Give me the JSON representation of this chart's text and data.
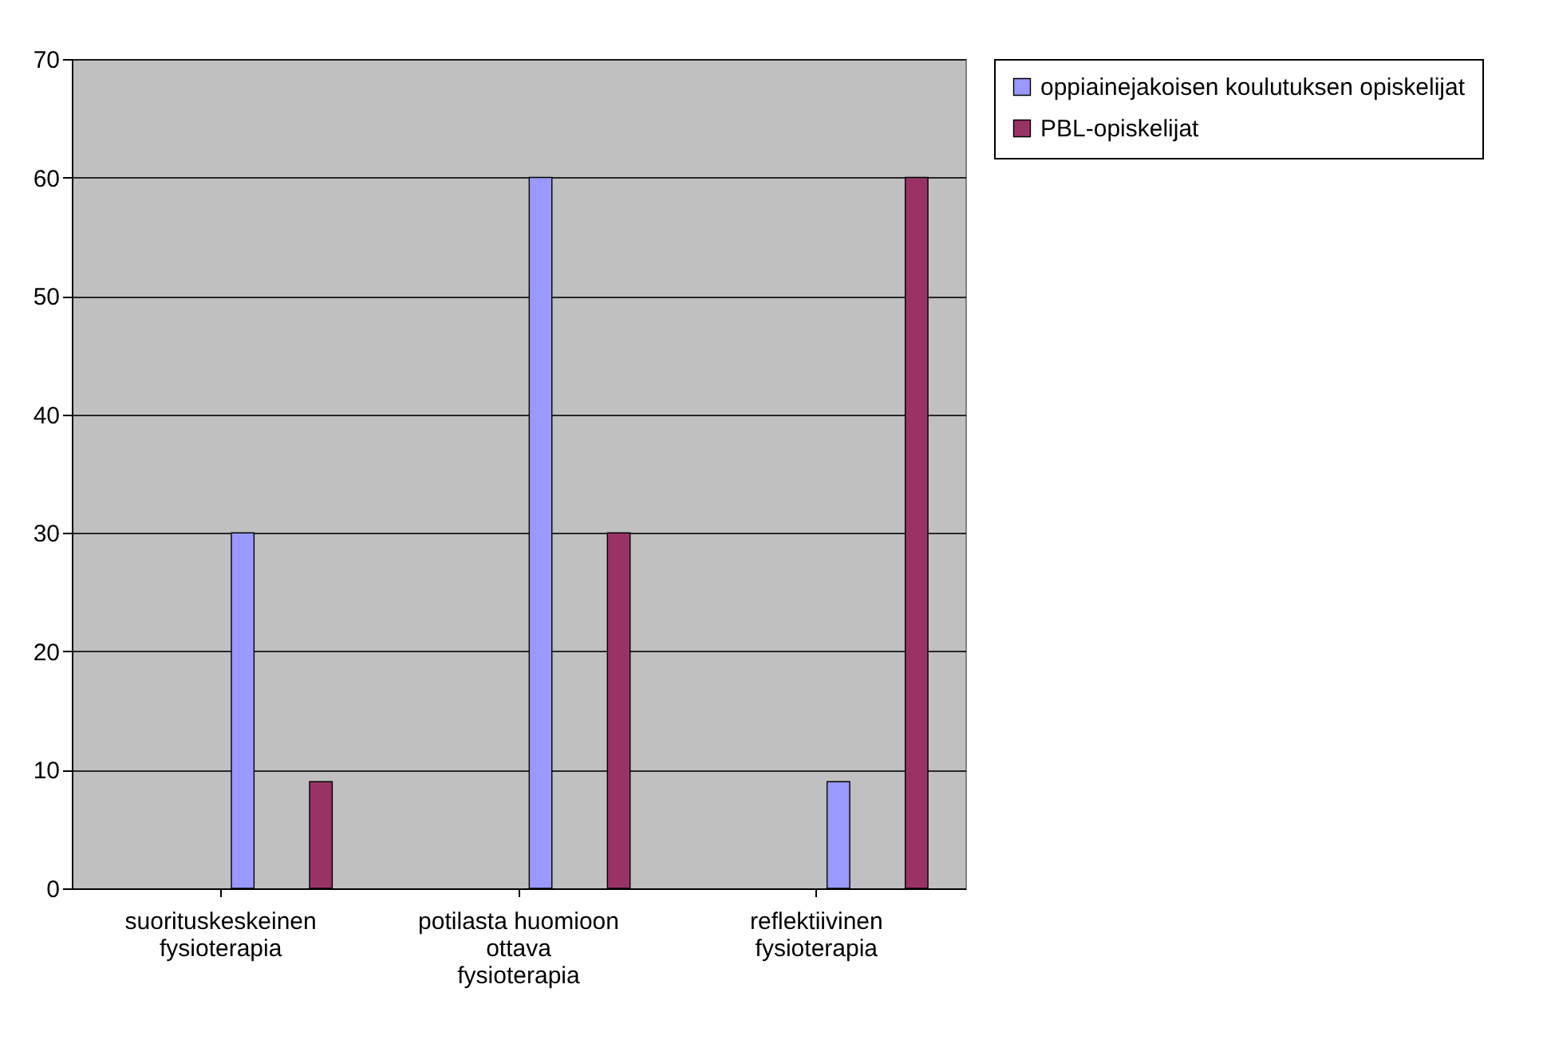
{
  "chart_data": {
    "type": "bar",
    "categories": [
      "suorituskeskeinen fysioterapia",
      "potilasta huomioon ottava fysioterapia",
      "reflektiivinen fysioterapia"
    ],
    "series": [
      {
        "name": "oppiainejakoisen koulutuksen opiskelijat",
        "color": "#9999ff",
        "values": [
          30,
          60,
          9
        ]
      },
      {
        "name": "PBL-opiskelijat",
        "color": "#993366",
        "values": [
          9,
          30,
          60
        ]
      }
    ],
    "ylim": [
      0,
      70
    ],
    "yticks": [
      0,
      10,
      20,
      30,
      40,
      50,
      60,
      70
    ],
    "grid": "y",
    "legend": "right"
  }
}
